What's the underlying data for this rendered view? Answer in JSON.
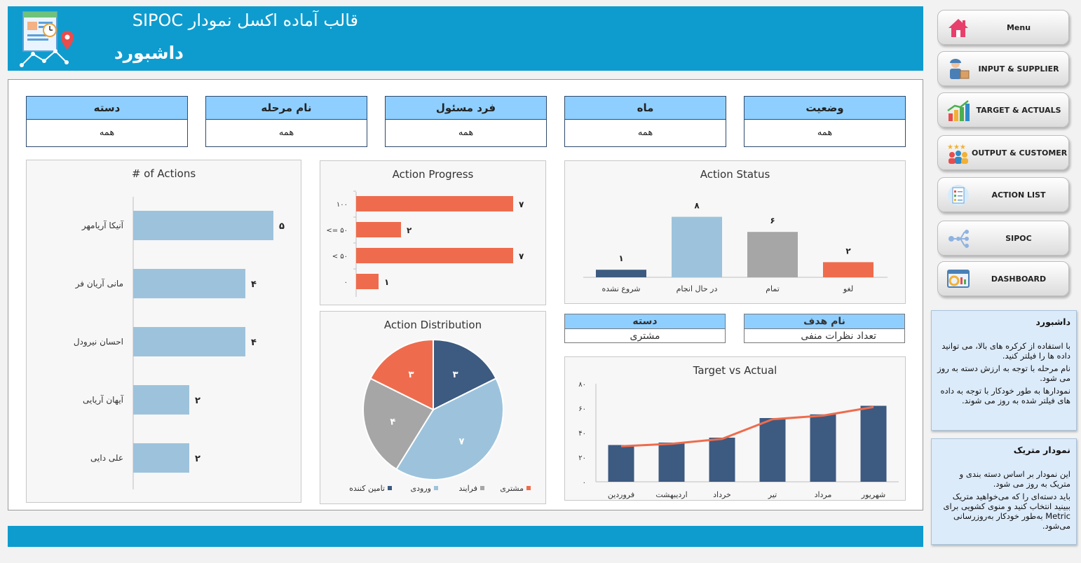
{
  "header": {
    "subtitle": "قالب آماده اکسل نمودار SIPOC",
    "title": "داشبورد"
  },
  "filters": [
    {
      "label": "دسته",
      "value": "همه"
    },
    {
      "label": "نام مرحله",
      "value": "همه"
    },
    {
      "label": "فرد مسئول",
      "value": "همه"
    },
    {
      "label": "ماه",
      "value": "همه"
    },
    {
      "label": "وضعیت",
      "value": "همه"
    }
  ],
  "info": {
    "category_label": "دسته",
    "category_value": "مشتری",
    "goal_label": "نام هدف",
    "goal_value": "تعداد نظرات منفی"
  },
  "charts": {
    "actions_title": "# of Actions",
    "progress_title": "Action Progress",
    "distribution_title": "Action Distribution",
    "status_title": "Action Status",
    "target_title": "Target vs Actual"
  },
  "chart_data": [
    {
      "type": "bar",
      "title": "# of Actions",
      "categories": [
        "آنیکا آریامهر",
        "مانی آریان فر",
        "احسان نیرودل",
        "آیهان آریایی",
        "علی دایی"
      ],
      "values": [
        5,
        4,
        4,
        2,
        2
      ],
      "value_labels": [
        "۵",
        "۴",
        "۴",
        "۲",
        "۲"
      ],
      "orientation": "horizontal",
      "color": "#9dc3dc"
    },
    {
      "type": "bar",
      "title": "Action Progress",
      "categories": [
        "۱۰۰",
        "<= ۵۰",
        "< ۵۰",
        "۰"
      ],
      "values": [
        7,
        2,
        7,
        1
      ],
      "value_labels": [
        "۷",
        "۲",
        "۷",
        "۱"
      ],
      "orientation": "horizontal",
      "color": "#ee6c4d"
    },
    {
      "type": "pie",
      "title": "Action Distribution",
      "categories": [
        "تامین کننده",
        "ورودی",
        "فرایند",
        "مشتری"
      ],
      "values": [
        3,
        7,
        4,
        3
      ],
      "value_labels": [
        "۳",
        "۷",
        "۴",
        "۳"
      ],
      "colors": [
        "#3d5a80",
        "#9dc3dc",
        "#a6a6a6",
        "#ee6c4d"
      ],
      "legend": "bottom"
    },
    {
      "type": "bar",
      "title": "Action Status",
      "categories": [
        "شروع نشده",
        "در حال انجام",
        "تمام",
        "لغو"
      ],
      "values": [
        1,
        8,
        6,
        2
      ],
      "value_labels": [
        "۱",
        "۸",
        "۶",
        "۲"
      ],
      "colors": [
        "#3d5a80",
        "#9dc3dc",
        "#a6a6a6",
        "#ee6c4d"
      ]
    },
    {
      "type": "bar",
      "title": "Target vs Actual",
      "categories": [
        "فروردین",
        "اردیبهشت",
        "خرداد",
        "تیر",
        "مرداد",
        "شهریور"
      ],
      "series": [
        {
          "type": "bar",
          "values": [
            30,
            32,
            36,
            52,
            55,
            62
          ],
          "color": "#3d5a80"
        },
        {
          "type": "line",
          "values": [
            29,
            31,
            35,
            51,
            54,
            61
          ],
          "color": "#ee6c4d"
        }
      ],
      "ylim": [
        0,
        80
      ],
      "yticks": [
        "۰",
        "۲۰",
        "۴۰",
        "۶۰",
        "۸۰"
      ]
    }
  ],
  "nav": [
    {
      "label": "Menu",
      "icon": "home-icon"
    },
    {
      "label": "INPUT  &  SUPPLIER",
      "icon": "supplier-icon"
    },
    {
      "label": "TARGET  &  ACTUALS",
      "icon": "growth-chart-icon"
    },
    {
      "label": "OUTPUT  &  CUSTOMER",
      "icon": "customer-rating-icon"
    },
    {
      "label": "ACTION LIST",
      "icon": "checklist-icon"
    },
    {
      "label": "SIPOC",
      "icon": "sipoc-flow-icon"
    },
    {
      "label": "DASHBOARD",
      "icon": "dashboard-icon"
    }
  ],
  "notes": {
    "dashboard_title": "داشبورد",
    "dashboard_lines": [
      "با استفاده از کرکره های بالا، می توانید داده ها را فیلتر کنید.",
      "نام مرحله با توجه به ارزش دسته به روز می شود.",
      "نمودارها به طور خودکار با توجه به داده های فیلتر شده به روز می شوند."
    ],
    "metric_title": "نمودار متریک",
    "metric_lines": [
      "این نمودار بر اساس دسته بندی و متریک به روز می شود.",
      "باید دسته‌ای را که می‌خواهید متریک ببینید انتخاب کنید و منوی کشویی برای Metric به‌طور خودکار به‌روزرسانی می‌شود."
    ]
  }
}
